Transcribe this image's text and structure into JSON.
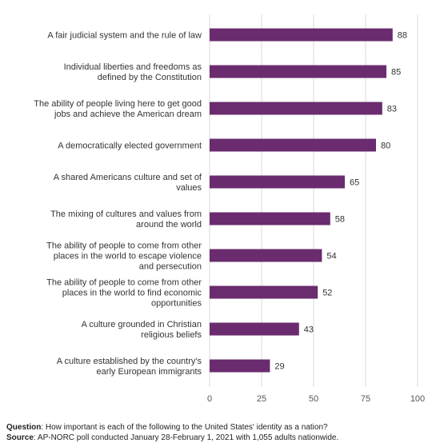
{
  "chart_data": {
    "type": "bar",
    "orientation": "horizontal",
    "categories": [
      [
        "A fair judicial system and the rule of law"
      ],
      [
        "Individual liberties and freedoms as",
        "defined by the Constitution"
      ],
      [
        "The ability of people living here to get good",
        "jobs and achieve the American dream"
      ],
      [
        "A democratically elected government"
      ],
      [
        "A shared Americans culture and set of",
        "values"
      ],
      [
        "The mixing of cultures and values from",
        "around the world"
      ],
      [
        "The ability of people to come from other",
        "places in the world to escape violence",
        "and persecution"
      ],
      [
        "The ability of people to come from other",
        "places in the world to find economic",
        "opportunities"
      ],
      [
        "A culture grounded in Christian",
        "religious beliefs"
      ],
      [
        "A culture established by the country's",
        "early European immigrants"
      ]
    ],
    "values": [
      88,
      85,
      83,
      80,
      65,
      58,
      54,
      52,
      43,
      29
    ],
    "xlim": [
      0,
      100
    ],
    "xticks": [
      0,
      25,
      50,
      75,
      100
    ],
    "grid": true,
    "bar_color": "#6a2c6e",
    "grid_color": "#d9d9d9"
  },
  "footnote": {
    "question_label": "Question",
    "question_text": ": How important is each of the following to the United States' identity as a nation?",
    "source_label": "Source",
    "source_text": ": AP-NORC poll conducted January 28-February 1, 2021 with 1,055 adults nationwide."
  }
}
